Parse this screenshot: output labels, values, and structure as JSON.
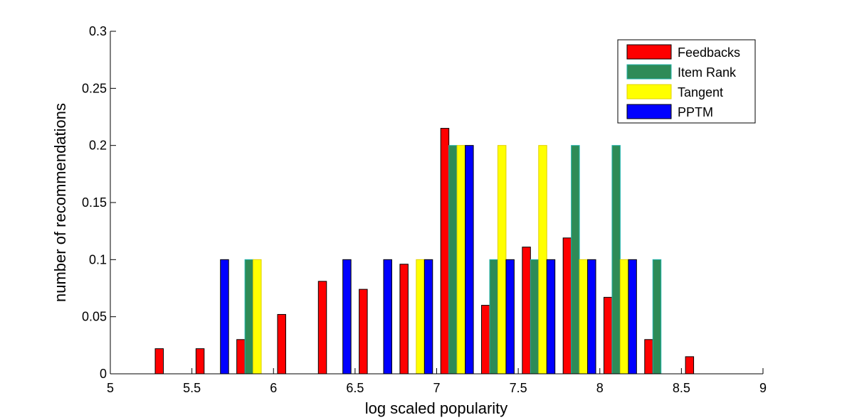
{
  "chart_data": {
    "type": "bar",
    "title": "",
    "xlabel": "log scaled popularity",
    "ylabel": "number of recommendations",
    "xlim": [
      5,
      9
    ],
    "ylim": [
      0,
      0.3
    ],
    "xticks": [
      "5",
      "5.5",
      "6",
      "6.5",
      "7",
      "7.5",
      "8",
      "8.5",
      "9"
    ],
    "yticks": [
      "0",
      "0.05",
      "0.1",
      "0.15",
      "0.2",
      "0.25",
      "0.3"
    ],
    "grid": false,
    "legend_position": "top-right",
    "bin_centers": [
      5.125,
      5.375,
      5.625,
      5.875,
      6.125,
      6.375,
      6.625,
      6.875,
      7.125,
      7.375,
      7.625,
      7.875,
      8.125,
      8.375,
      8.625,
      8.875
    ],
    "series": [
      {
        "name": "Feedbacks",
        "color": "#ff0000",
        "edge": "#000000",
        "values": [
          0,
          0.022,
          0.022,
          0.03,
          0.052,
          0.081,
          0.074,
          0.096,
          0.215,
          0.06,
          0.111,
          0.119,
          0.067,
          0.03,
          0.015,
          0
        ]
      },
      {
        "name": "Item Rank",
        "color": "#2e8b57",
        "edge": "#20b2aa",
        "values": [
          0,
          0,
          0,
          0.1,
          0,
          0,
          0,
          0,
          0.2,
          0.1,
          0.1,
          0.2,
          0.2,
          0.1,
          0,
          0
        ]
      },
      {
        "name": "Tangent",
        "color": "#ffff00",
        "edge": "#e0d000",
        "values": [
          0,
          0,
          0,
          0.1,
          0,
          0,
          0,
          0.1,
          0.2,
          0.2,
          0.2,
          0.1,
          0.1,
          0,
          0,
          0
        ]
      },
      {
        "name": "PPTM",
        "color": "#0000ff",
        "edge": "#000000",
        "values": [
          0,
          0,
          0.1,
          0,
          0,
          0.1,
          0.1,
          0.1,
          0.2,
          0.1,
          0.1,
          0.1,
          0.1,
          0,
          0,
          0
        ]
      }
    ]
  }
}
